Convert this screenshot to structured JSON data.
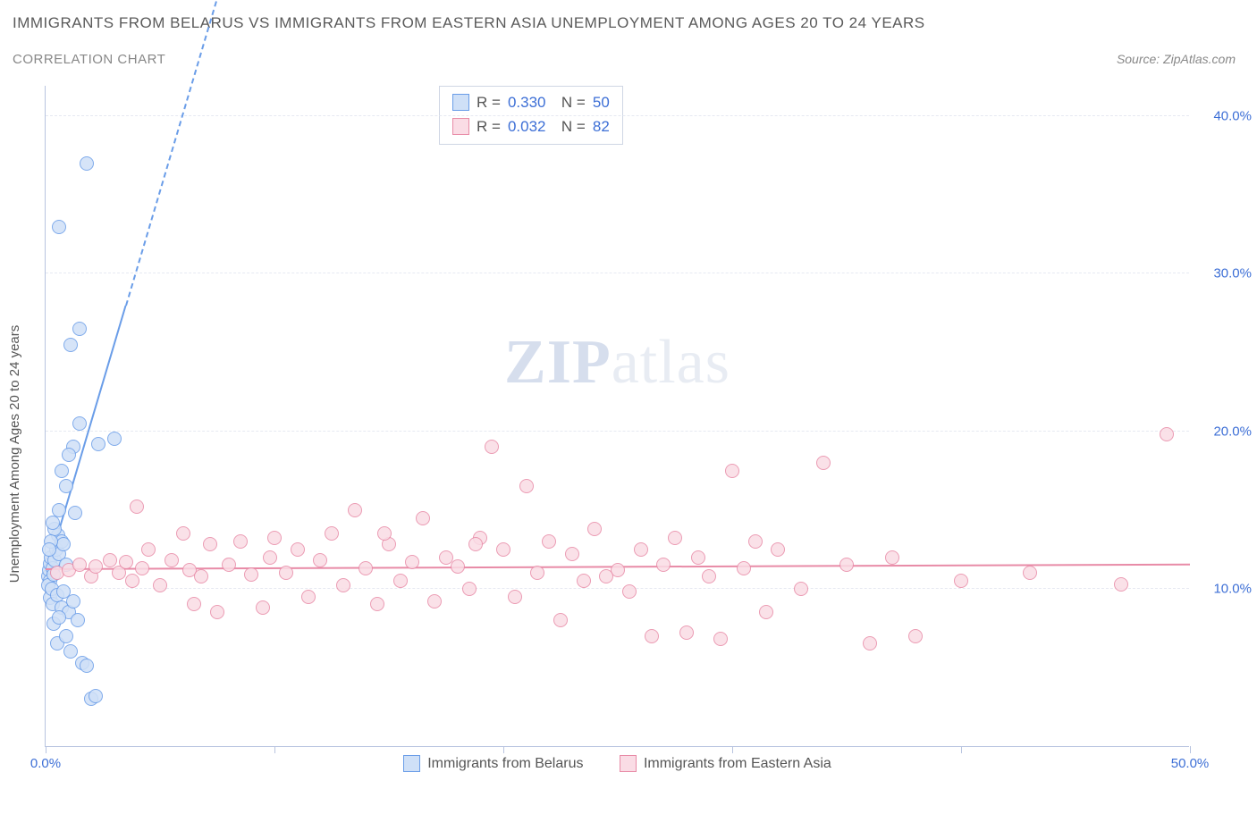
{
  "title": "IMMIGRANTS FROM BELARUS VS IMMIGRANTS FROM EASTERN ASIA UNEMPLOYMENT AMONG AGES 20 TO 24 YEARS",
  "subtitle": "CORRELATION CHART",
  "source": "Source: ZipAtlas.com",
  "y_axis_label": "Unemployment Among Ages 20 to 24 years",
  "watermark_a": "ZIP",
  "watermark_b": "atlas",
  "chart": {
    "type": "scatter",
    "xlim": [
      0,
      50
    ],
    "ylim": [
      0,
      42
    ],
    "xticks": [
      0,
      10,
      20,
      30,
      40,
      50
    ],
    "xtick_labels": [
      "0.0%",
      "",
      "",
      "",
      "",
      "50.0%"
    ],
    "yticks": [
      10,
      20,
      30,
      40
    ],
    "ytick_labels": [
      "10.0%",
      "20.0%",
      "30.0%",
      "40.0%"
    ],
    "grid_color": "#e6e9f2",
    "axis_color": "#b8c4e0",
    "background": "#ffffff",
    "marker_radius": 8,
    "series": [
      {
        "name": "Immigrants from Belarus",
        "fill": "#cfe0f7",
        "stroke": "#6a9de8",
        "r_value": "0.330",
        "n_value": "50",
        "trend": {
          "slope": 4.9,
          "intercept": 10.8,
          "solid_xmax": 3.5,
          "dashed_xmax": 8.0,
          "width": 2
        },
        "points": [
          [
            0.1,
            10.8
          ],
          [
            0.15,
            11.2
          ],
          [
            0.2,
            10.5
          ],
          [
            0.18,
            11.6
          ],
          [
            0.25,
            12.0
          ],
          [
            0.3,
            11.3
          ],
          [
            0.12,
            10.2
          ],
          [
            0.2,
            9.4
          ],
          [
            0.28,
            10.0
          ],
          [
            0.35,
            10.9
          ],
          [
            0.4,
            11.8
          ],
          [
            0.45,
            12.5
          ],
          [
            0.55,
            13.4
          ],
          [
            0.6,
            12.2
          ],
          [
            0.7,
            13.0
          ],
          [
            0.8,
            12.8
          ],
          [
            0.9,
            11.5
          ],
          [
            0.3,
            9.0
          ],
          [
            0.5,
            9.6
          ],
          [
            0.7,
            8.8
          ],
          [
            1.0,
            8.5
          ],
          [
            1.2,
            9.2
          ],
          [
            1.4,
            8.0
          ],
          [
            1.6,
            5.3
          ],
          [
            1.8,
            5.1
          ],
          [
            2.0,
            3.0
          ],
          [
            2.2,
            3.2
          ],
          [
            0.5,
            6.5
          ],
          [
            0.9,
            7.0
          ],
          [
            1.1,
            6.0
          ],
          [
            0.6,
            15.0
          ],
          [
            0.9,
            16.5
          ],
          [
            0.7,
            17.5
          ],
          [
            1.2,
            19.0
          ],
          [
            1.5,
            20.5
          ],
          [
            1.0,
            18.5
          ],
          [
            1.3,
            14.8
          ],
          [
            2.3,
            19.2
          ],
          [
            3.0,
            19.5
          ],
          [
            1.1,
            25.5
          ],
          [
            1.5,
            26.5
          ],
          [
            0.6,
            33.0
          ],
          [
            1.8,
            37.0
          ],
          [
            0.4,
            13.8
          ],
          [
            0.3,
            14.2
          ],
          [
            0.25,
            13.0
          ],
          [
            0.15,
            12.5
          ],
          [
            0.35,
            7.8
          ],
          [
            0.6,
            8.2
          ],
          [
            0.8,
            9.8
          ]
        ]
      },
      {
        "name": "Immigrants from Eastern Asia",
        "fill": "#fadce5",
        "stroke": "#e88ba7",
        "r_value": "0.032",
        "n_value": "82",
        "trend": {
          "slope": 0.006,
          "intercept": 11.2,
          "solid_xmax": 50,
          "dashed_xmax": 50,
          "width": 2
        },
        "points": [
          [
            0.5,
            11.0
          ],
          [
            1.0,
            11.2
          ],
          [
            1.5,
            11.5
          ],
          [
            2.0,
            10.8
          ],
          [
            2.2,
            11.4
          ],
          [
            2.8,
            11.8
          ],
          [
            3.2,
            11.0
          ],
          [
            3.5,
            11.7
          ],
          [
            3.8,
            10.5
          ],
          [
            4.2,
            11.3
          ],
          [
            4.5,
            12.5
          ],
          [
            5.0,
            10.2
          ],
          [
            5.5,
            11.8
          ],
          [
            6.0,
            13.5
          ],
          [
            6.3,
            11.2
          ],
          [
            6.8,
            10.8
          ],
          [
            7.2,
            12.8
          ],
          [
            7.5,
            8.5
          ],
          [
            8.0,
            11.5
          ],
          [
            8.5,
            13.0
          ],
          [
            9.0,
            10.9
          ],
          [
            9.5,
            8.8
          ],
          [
            10.0,
            13.2
          ],
          [
            10.5,
            11.0
          ],
          [
            11.0,
            12.5
          ],
          [
            11.5,
            9.5
          ],
          [
            12.0,
            11.8
          ],
          [
            12.5,
            13.5
          ],
          [
            13.0,
            10.2
          ],
          [
            13.5,
            15.0
          ],
          [
            14.0,
            11.3
          ],
          [
            14.5,
            9.0
          ],
          [
            15.0,
            12.8
          ],
          [
            15.5,
            10.5
          ],
          [
            16.0,
            11.7
          ],
          [
            16.5,
            14.5
          ],
          [
            17.0,
            9.2
          ],
          [
            17.5,
            12.0
          ],
          [
            18.0,
            11.4
          ],
          [
            18.5,
            10.0
          ],
          [
            19.0,
            13.2
          ],
          [
            19.5,
            19.0
          ],
          [
            20.0,
            12.5
          ],
          [
            20.5,
            9.5
          ],
          [
            21.0,
            16.5
          ],
          [
            21.5,
            11.0
          ],
          [
            22.0,
            13.0
          ],
          [
            22.5,
            8.0
          ],
          [
            23.0,
            12.2
          ],
          [
            23.5,
            10.5
          ],
          [
            24.0,
            13.8
          ],
          [
            25.0,
            11.2
          ],
          [
            25.5,
            9.8
          ],
          [
            26.0,
            12.5
          ],
          [
            26.5,
            7.0
          ],
          [
            27.0,
            11.5
          ],
          [
            27.5,
            13.2
          ],
          [
            28.0,
            7.2
          ],
          [
            28.5,
            12.0
          ],
          [
            29.0,
            10.8
          ],
          [
            29.5,
            6.8
          ],
          [
            30.0,
            17.5
          ],
          [
            30.5,
            11.3
          ],
          [
            31.0,
            13.0
          ],
          [
            32.0,
            12.5
          ],
          [
            33.0,
            10.0
          ],
          [
            34.0,
            18.0
          ],
          [
            35.0,
            11.5
          ],
          [
            36.0,
            6.5
          ],
          [
            37.0,
            12.0
          ],
          [
            38.0,
            7.0
          ],
          [
            40.0,
            10.5
          ],
          [
            43.0,
            11.0
          ],
          [
            47.0,
            10.3
          ],
          [
            49.0,
            19.8
          ],
          [
            4.0,
            15.2
          ],
          [
            6.5,
            9.0
          ],
          [
            9.8,
            12.0
          ],
          [
            14.8,
            13.5
          ],
          [
            18.8,
            12.8
          ],
          [
            24.5,
            10.8
          ],
          [
            31.5,
            8.5
          ]
        ]
      }
    ]
  },
  "legend_bottom": [
    {
      "label": "Immigrants from Belarus",
      "fill": "#cfe0f7",
      "stroke": "#6a9de8"
    },
    {
      "label": "Immigrants from Eastern Asia",
      "fill": "#fadce5",
      "stroke": "#e88ba7"
    }
  ]
}
